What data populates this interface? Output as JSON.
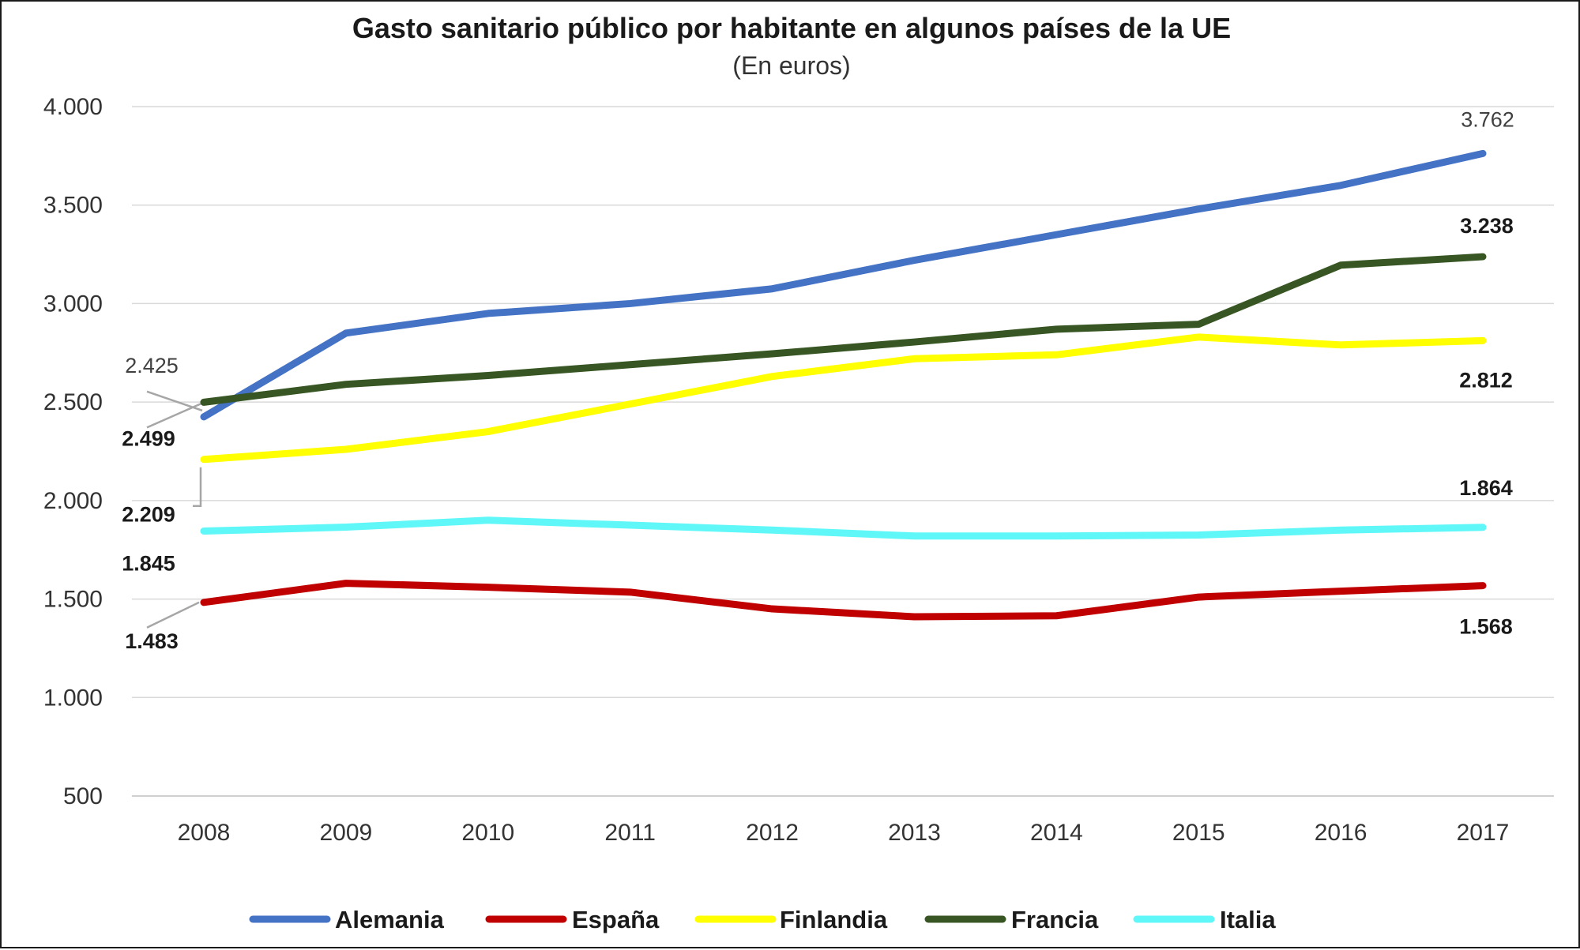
{
  "chart_data": {
    "type": "line",
    "title": "Gasto sanitario público por habitante en algunos países de la UE",
    "subtitle": "(En euros)",
    "xlabel": "",
    "ylabel": "",
    "categories": [
      "2008",
      "2009",
      "2010",
      "2011",
      "2012",
      "2013",
      "2014",
      "2015",
      "2016",
      "2017"
    ],
    "ylim": [
      500,
      4000
    ],
    "yticks": [
      500,
      1000,
      1500,
      2000,
      2500,
      3000,
      3500,
      4000
    ],
    "ytick_labels": [
      "500",
      "1.000",
      "1.500",
      "2.000",
      "2.500",
      "3.000",
      "3.500",
      "4.000"
    ],
    "grid": true,
    "legend_position": "bottom",
    "series": [
      {
        "name": "Alemania",
        "color": "#4472C4",
        "values": [
          2425,
          2850,
          2950,
          3000,
          3075,
          3220,
          3350,
          3480,
          3600,
          3762
        ]
      },
      {
        "name": "España",
        "color": "#C00000",
        "values": [
          1483,
          1580,
          1560,
          1535,
          1450,
          1410,
          1415,
          1510,
          1540,
          1568
        ]
      },
      {
        "name": "Finlandia",
        "color": "#FFFF00",
        "values": [
          2209,
          2260,
          2350,
          2490,
          2630,
          2720,
          2740,
          2830,
          2790,
          2812
        ]
      },
      {
        "name": "Francia",
        "color": "#375623",
        "values": [
          2499,
          2590,
          2635,
          2690,
          2745,
          2805,
          2870,
          2895,
          3195,
          3238
        ]
      },
      {
        "name": "Italia",
        "color": "#5FF7F7",
        "values": [
          1845,
          1865,
          1900,
          1875,
          1850,
          1820,
          1820,
          1825,
          1850,
          1864
        ]
      }
    ],
    "data_labels": [
      {
        "series": "Alemania",
        "index": 0,
        "text": "2.425",
        "style": "light"
      },
      {
        "series": "Francia",
        "index": 0,
        "text": "2.499",
        "style": "bold"
      },
      {
        "series": "Finlandia",
        "index": 0,
        "text": "2.209",
        "style": "bold"
      },
      {
        "series": "Italia",
        "index": 0,
        "text": "1.845",
        "style": "bold"
      },
      {
        "series": "España",
        "index": 0,
        "text": "1.483",
        "style": "bold"
      },
      {
        "series": "Alemania",
        "index": 9,
        "text": "3.762",
        "style": "light"
      },
      {
        "series": "Francia",
        "index": 9,
        "text": "3.238",
        "style": "bold"
      },
      {
        "series": "Finlandia",
        "index": 9,
        "text": "2.812",
        "style": "bold"
      },
      {
        "series": "Italia",
        "index": 9,
        "text": "1.864",
        "style": "bold"
      },
      {
        "series": "España",
        "index": 9,
        "text": "1.568",
        "style": "bold"
      }
    ]
  }
}
